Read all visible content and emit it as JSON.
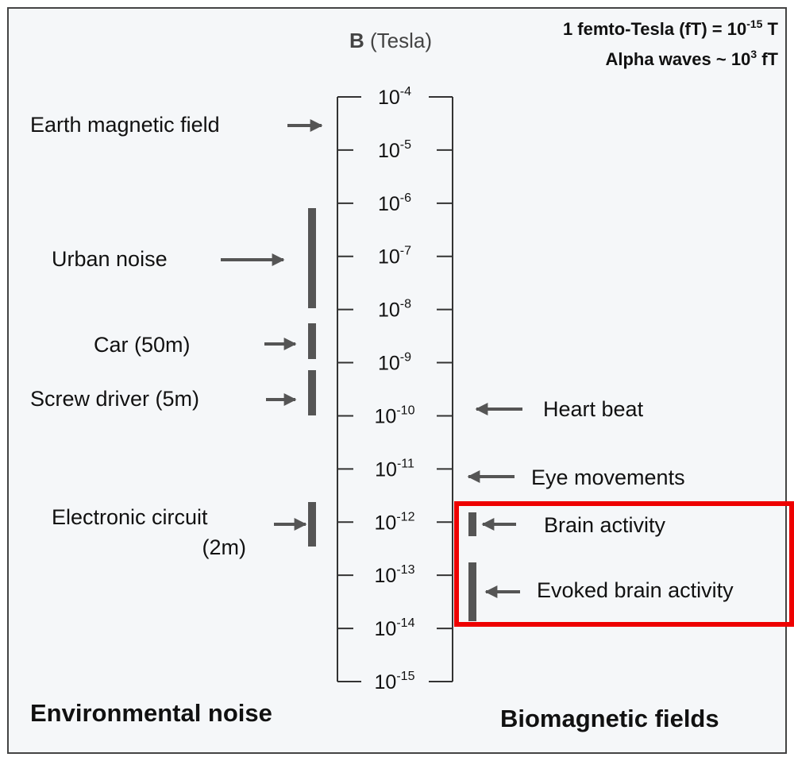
{
  "header": {
    "axis_symbol": "B",
    "axis_unit": "(Tesla)",
    "note1": {
      "text": "1 femto-Tesla (fT) = 10",
      "exp": "-15",
      "after": " T"
    },
    "note2": {
      "text": "Alpha waves ~ 10",
      "exp": "3",
      "after": " fT"
    }
  },
  "axis": {
    "ticks": [
      {
        "base": "10",
        "exp": "-4"
      },
      {
        "base": "10",
        "exp": "-5"
      },
      {
        "base": "10",
        "exp": "-6"
      },
      {
        "base": "10",
        "exp": "-7"
      },
      {
        "base": "10",
        "exp": "-8"
      },
      {
        "base": "10",
        "exp": "-9"
      },
      {
        "base": "10",
        "exp": "-10"
      },
      {
        "base": "10",
        "exp": "-11"
      },
      {
        "base": "10",
        "exp": "-12"
      },
      {
        "base": "10",
        "exp": "-13"
      },
      {
        "base": "10",
        "exp": "-14"
      },
      {
        "base": "10",
        "exp": "-15"
      }
    ]
  },
  "environmental": {
    "title": "Environmental noise",
    "items": [
      {
        "lines": [
          "Earth magnetic field"
        ]
      },
      {
        "lines": [
          "Urban noise"
        ]
      },
      {
        "lines": [
          "Car (50m)"
        ]
      },
      {
        "lines": [
          "Screw driver (5m)"
        ]
      },
      {
        "lines": [
          "Electronic circuit",
          "(2m)"
        ]
      }
    ]
  },
  "biomagnetic": {
    "title": "Biomagnetic fields",
    "items": [
      {
        "lines": [
          "Heart beat"
        ]
      },
      {
        "lines": [
          "Eye movements"
        ]
      },
      {
        "lines": [
          "Brain activity"
        ]
      },
      {
        "lines": [
          "Evoked brain activity"
        ]
      }
    ]
  }
}
